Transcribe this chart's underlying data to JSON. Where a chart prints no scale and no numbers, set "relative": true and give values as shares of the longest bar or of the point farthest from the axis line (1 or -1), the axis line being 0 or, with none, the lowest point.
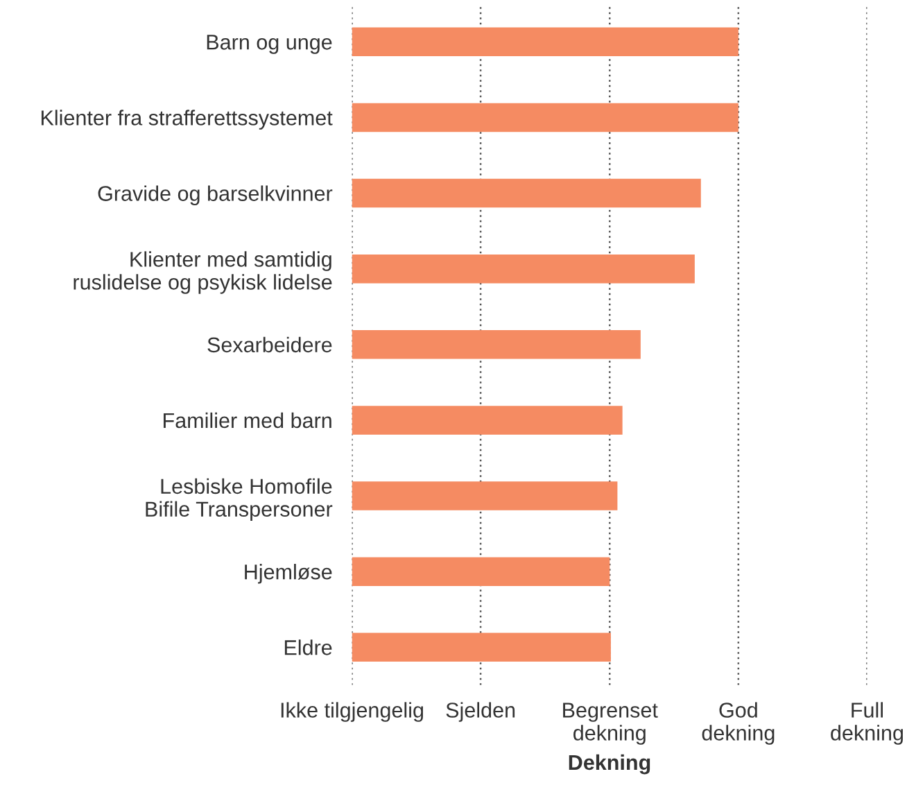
{
  "chart_data": {
    "type": "bar",
    "orientation": "horizontal",
    "relative": true,
    "xlabel": "Dekning",
    "categories": [
      "Barn og unge",
      "Klienter fra strafferettssystemet",
      "Gravide og barselkvinner",
      "Klienter med samtidig\nruslidelse og psykisk lidelse",
      "Sexarbeidere",
      "Familier med barn",
      "Lesbiske Homofile\nBifile Transpersoner",
      "Hjemløse",
      "Eldre"
    ],
    "values": [
      1,
      1,
      0.903,
      0.887,
      0.747,
      0.7,
      0.687,
      0.667,
      0.67
    ],
    "color": "#f58b62",
    "ref_lines": [
      {
        "axis": "x",
        "value": 0,
        "label": "Ikke tilgjengelig",
        "color": "#555555",
        "line_style": "dotted"
      },
      {
        "axis": "x",
        "value": 0.333,
        "label": "Sjelden",
        "color": "#555555",
        "line_style": "dotted"
      },
      {
        "axis": "x",
        "value": 0.667,
        "label": "Begrenset\ndekning",
        "color": "#555555",
        "line_style": "dotted"
      },
      {
        "axis": "x",
        "value": 1,
        "label": "God\ndekning",
        "color": "#555555",
        "line_style": "dotted"
      },
      {
        "axis": "x",
        "value": 1.333,
        "label": "Full\ndekning",
        "color": "#555555",
        "line_style": "dotted"
      }
    ]
  }
}
